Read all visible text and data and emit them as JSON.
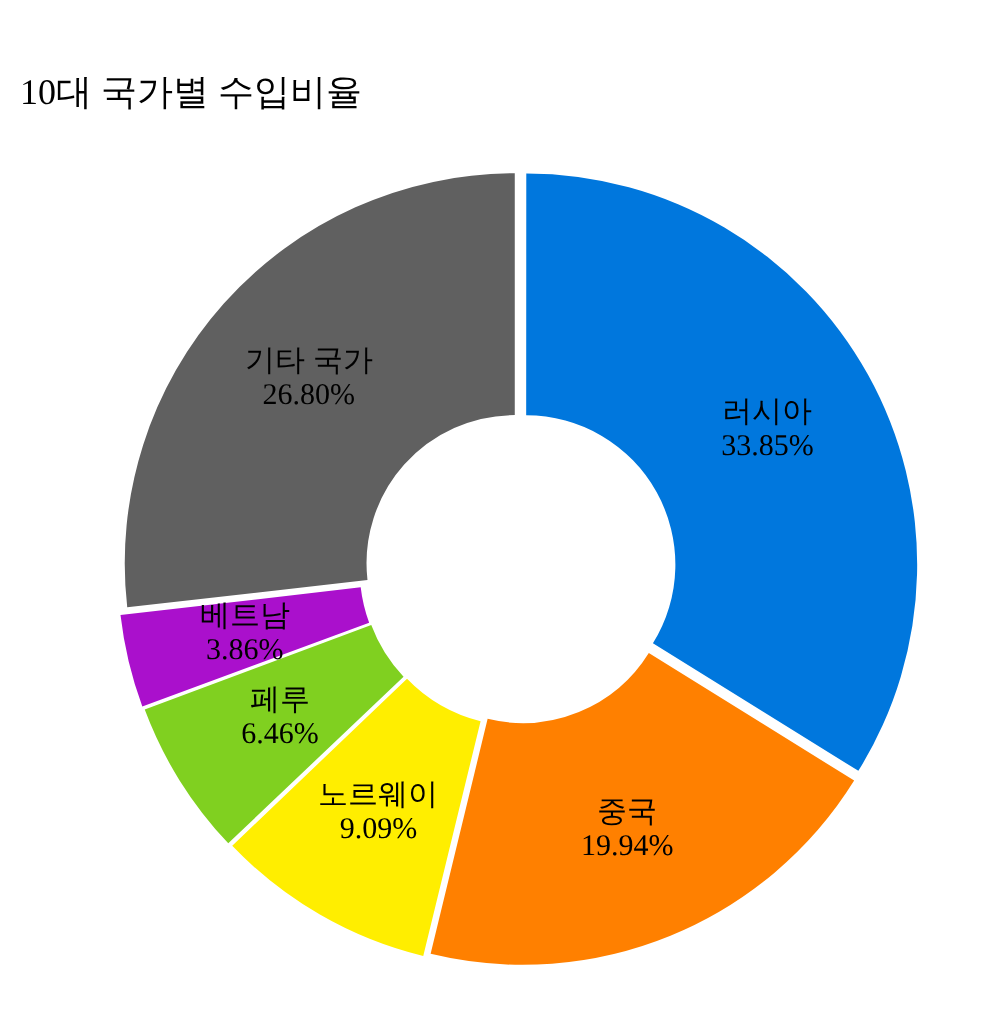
{
  "chart_data": {
    "type": "donut",
    "title": "10대 국가별 수입비율",
    "categories": [
      "러시아",
      "중국",
      "노르웨이",
      "페루",
      "베트남",
      "기타 국가"
    ],
    "values": [
      33.85,
      19.94,
      9.09,
      6.46,
      3.86,
      26.8
    ],
    "value_labels": [
      "33.85%",
      "19.94%",
      "9.09%",
      "6.46%",
      "3.86%",
      "26.80%"
    ],
    "colors": [
      "#0077dd",
      "#ff8000",
      "#ffee00",
      "#80d020",
      "#aa10cc",
      "#606060"
    ],
    "legend": false
  }
}
